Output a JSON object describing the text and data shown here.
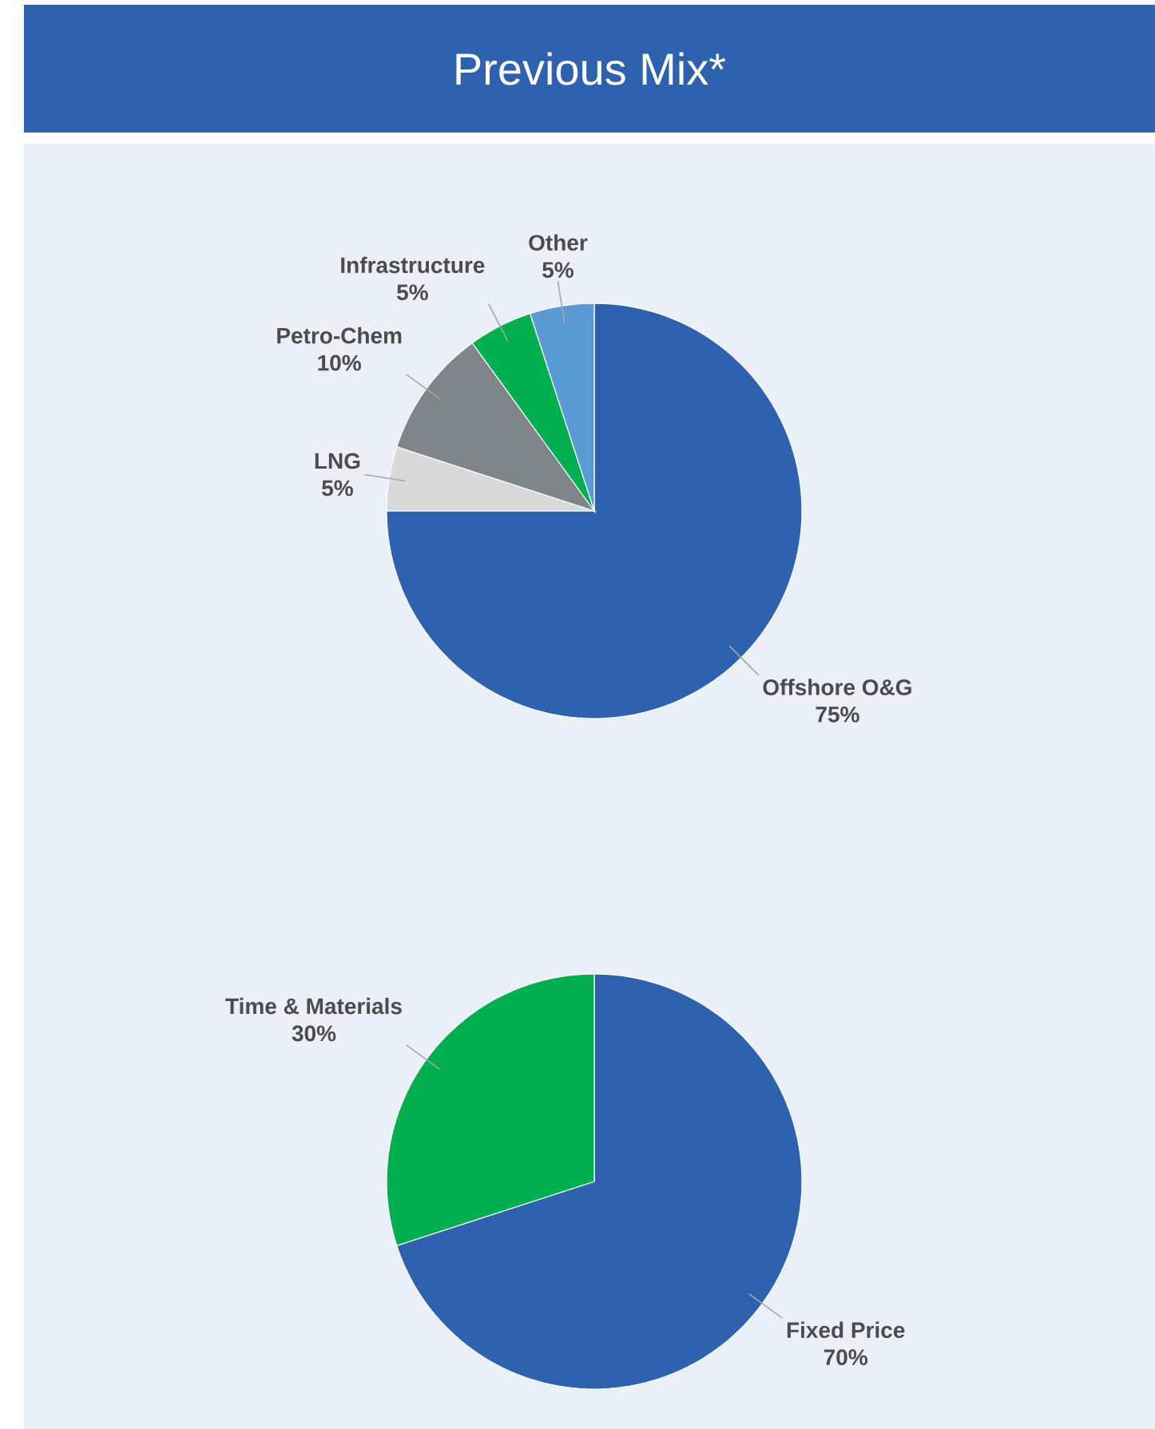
{
  "chart_data": [
    {
      "type": "pie",
      "title": "Previous Mix*",
      "categories": [
        "Offshore O&G",
        "LNG",
        "Petro-Chem",
        "Infrastructure",
        "Other"
      ],
      "values": [
        75,
        5,
        10,
        5,
        5
      ],
      "value_labels": [
        "75%",
        "5%",
        "10%",
        "5%",
        "5%"
      ],
      "colors": [
        "#2f62ae",
        "#d9d9d9",
        "#7f8588",
        "#00b050",
        "#5b9bd5"
      ]
    },
    {
      "type": "pie",
      "categories": [
        "Fixed Price",
        "Time & Materials"
      ],
      "values": [
        70,
        30
      ],
      "value_labels": [
        "70%",
        "30%"
      ],
      "colors": [
        "#2f62ae",
        "#00b050"
      ]
    }
  ]
}
